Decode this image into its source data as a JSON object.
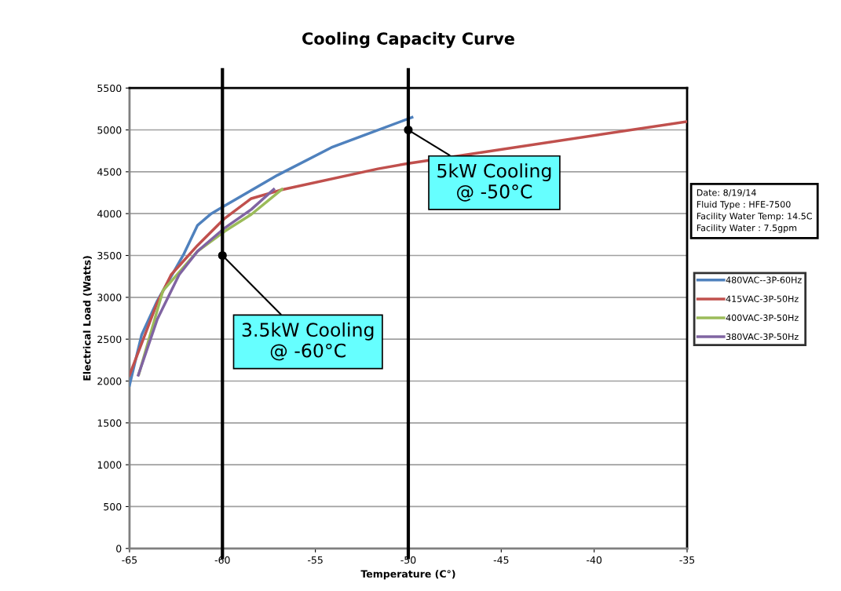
{
  "chart_data": {
    "type": "line",
    "title": "Cooling Capacity Curve",
    "xlabel": "Temperature (C°)",
    "ylabel": "Electrical Load (Watts)",
    "xlim": [
      -65,
      -35
    ],
    "xticks": [
      -65,
      -60,
      -55,
      -50,
      -45,
      -40,
      -35
    ],
    "ylim": [
      0,
      5500
    ],
    "yticks": [
      0,
      500,
      1000,
      1500,
      2000,
      2500,
      3000,
      3500,
      4000,
      4500,
      5000,
      5500
    ],
    "grid": "y",
    "legend": "right",
    "marker": "none",
    "line_style": "solid",
    "series": [
      {
        "name": "480VAC--3P-60Hz",
        "color": "#4f81bd",
        "x": [
          -65,
          -64.35,
          -63.5,
          -62.07,
          -61.34,
          -60.6,
          -59.87,
          -57.03,
          -54.14,
          -52.7,
          -49.8
        ],
        "values": [
          1950,
          2550,
          2960,
          3520,
          3860,
          4000,
          4095,
          4460,
          4790,
          4910,
          5150
        ]
      },
      {
        "name": "415VAC-3P-50Hz",
        "color": "#c0504d",
        "x": [
          -65,
          -63.5,
          -62.76,
          -61.34,
          -59.87,
          -58.45,
          -56.9,
          -51.64,
          -50,
          -35
        ],
        "values": [
          2070,
          2940,
          3270,
          3620,
          3945,
          4180,
          4280,
          4535,
          4600,
          5100
        ]
      },
      {
        "name": "400VAC-3P-50Hz",
        "color": "#9bbb59",
        "x": [
          -64.5,
          -63.2,
          -61.34,
          -59.87,
          -58.45,
          -56.8
        ],
        "values": [
          2080,
          3080,
          3550,
          3790,
          3990,
          4290
        ]
      },
      {
        "name": "380VAC-3P-50Hz",
        "color": "#8064a2",
        "x": [
          -64.53,
          -63.5,
          -62.33,
          -61.34,
          -59.87,
          -58.45,
          -57.24
        ],
        "values": [
          2070,
          2740,
          3270,
          3550,
          3830,
          4050,
          4290
        ]
      }
    ],
    "ref_lines": [
      {
        "axis": "x",
        "value": -60,
        "color": "#000000"
      },
      {
        "axis": "x",
        "value": -50,
        "color": "#000000"
      }
    ],
    "annotations": [
      {
        "text": "3.5kW Cooling\n@ -60°C",
        "x": -60,
        "y": 3500
      },
      {
        "text": "5kW Cooling\n@ -50°C",
        "x": -50,
        "y": 5000
      },
      "Date: 8/19/14\nFluid Type : HFE-7500\nFacility Water Temp: 14.5C\nFacility Water : 7.5gpm"
    ]
  }
}
